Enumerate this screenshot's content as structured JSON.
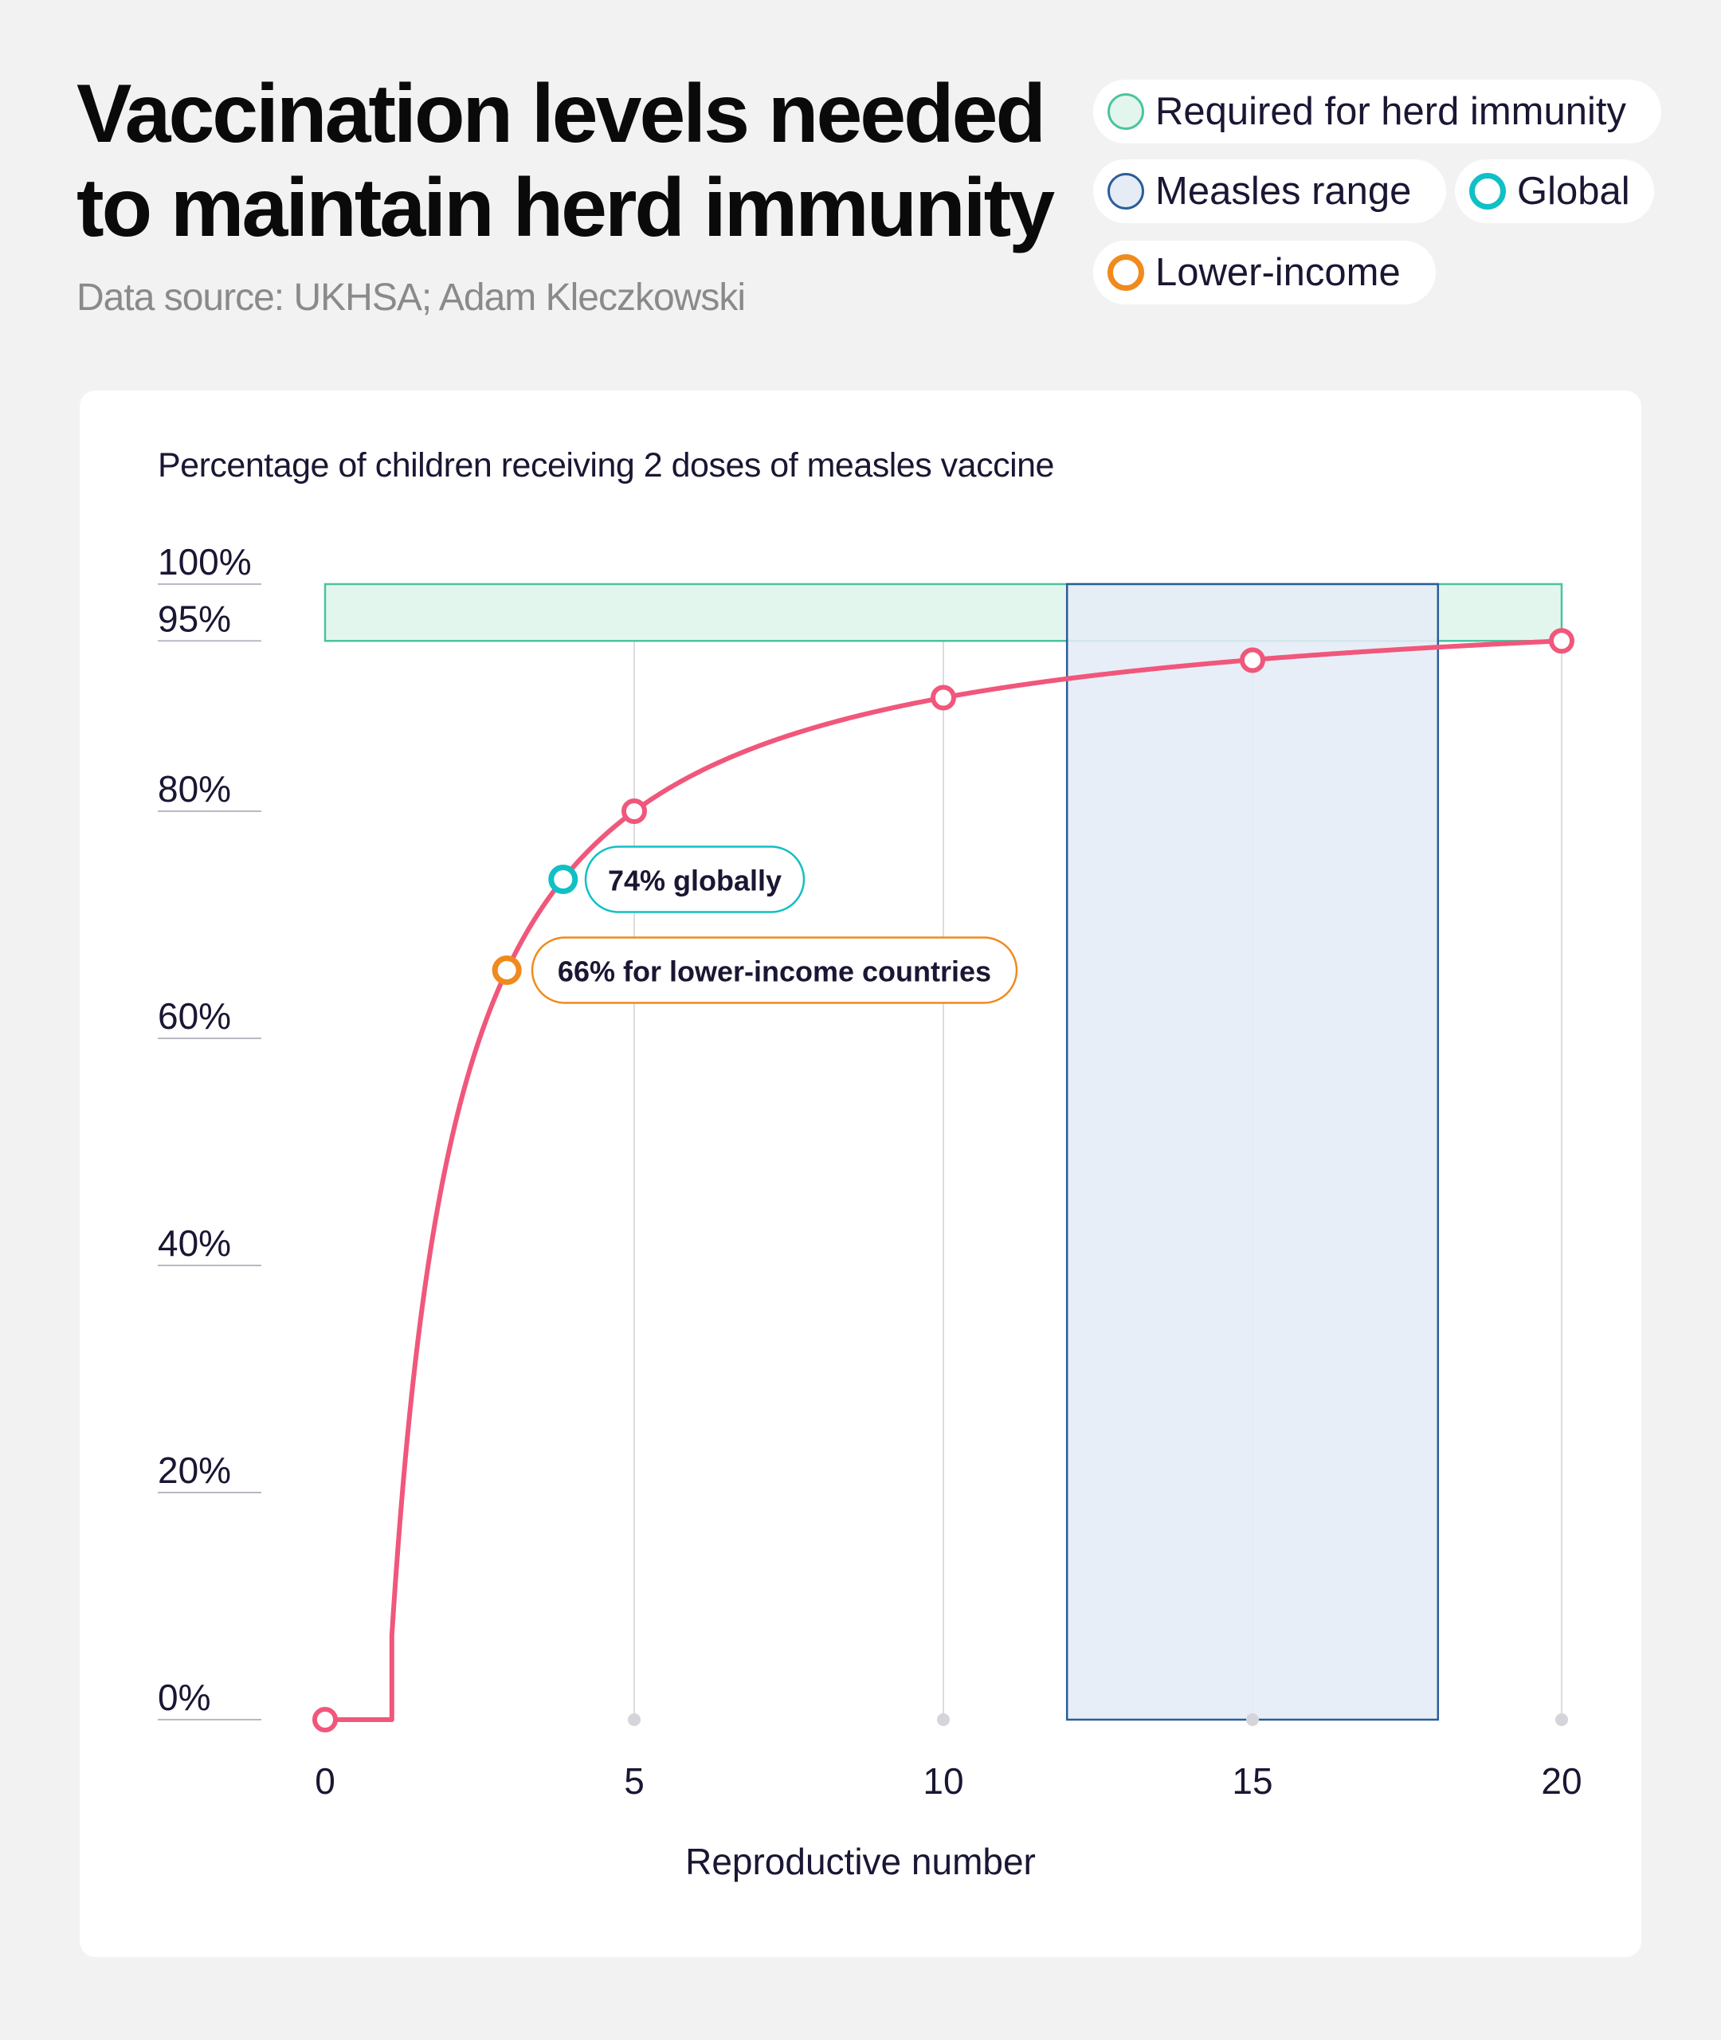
{
  "title": "Vaccination levels needed to maintain herd immunity",
  "subtitle": "Data source: UKHSA; Adam Kleczkowski",
  "legend": [
    {
      "label": "Required for herd immunity",
      "icon": "circle-swatch-icon",
      "fill": "#e3f6ee",
      "stroke": "#4cc3a0"
    },
    {
      "label": "Measles range",
      "icon": "circle-swatch-icon",
      "fill": "#e5ecf6",
      "stroke": "#2a5d98"
    },
    {
      "label": "Global",
      "icon": "ring-icon",
      "fill": "#ffffff",
      "stroke": "#10c0c4"
    },
    {
      "label": "Lower-income",
      "icon": "ring-icon",
      "fill": "#ffffff",
      "stroke": "#f08a1c"
    }
  ],
  "colors": {
    "curve": "#f0577b",
    "herd_band_fill": "#e3f6ee",
    "herd_band_stroke": "#4cc3a0",
    "measles_fill": "#e5ecf6",
    "measles_stroke": "#2a5d98",
    "global": "#10c0c4",
    "lower_income": "#f08a1c",
    "text_dark": "#1a1633",
    "grid": "#dcdce0"
  },
  "chart_data": {
    "type": "line",
    "title": "Percentage of children receiving 2 doses of measles vaccine",
    "xlabel": "Reproductive number",
    "ylabel": "Percentage of children receiving 2 doses of measles vaccine",
    "xlim": [
      0,
      20
    ],
    "ylim": [
      0,
      100
    ],
    "x_ticks": [
      0,
      5,
      10,
      15,
      20
    ],
    "x_tick_labels": [
      "0",
      "5",
      "10",
      "15",
      "20"
    ],
    "y_ticks": [
      0,
      20,
      40,
      60,
      80,
      95,
      100
    ],
    "y_tick_labels": [
      "0%",
      "20%",
      "40%",
      "60%",
      "80%",
      "95%",
      "100%"
    ],
    "grid": "vertical",
    "series": [
      {
        "curve": "1 - 1/R, 0 for R <= 1",
        "markers": [
          {
            "x": 0,
            "y": 0
          },
          {
            "x": 5,
            "y": 80
          },
          {
            "x": 10,
            "y": 90
          },
          {
            "x": 15,
            "y": 93.3
          },
          {
            "x": 20,
            "y": 95
          }
        ]
      }
    ],
    "bands": [
      {
        "name": "Required for herd immunity",
        "axis": "y",
        "from": 95,
        "to": 100,
        "x_from": 0,
        "x_to": 20
      },
      {
        "name": "Measles range",
        "axis": "x",
        "from": 12,
        "to": 18,
        "y_from": 0,
        "y_to": 100
      }
    ],
    "annotations": [
      {
        "label": "74% globally",
        "x": 3.85,
        "y": 74,
        "series": "Global"
      },
      {
        "label": "66% for lower-income countries",
        "x": 2.94,
        "y": 66,
        "series": "Lower-income"
      }
    ],
    "legend_position": "top-right"
  }
}
